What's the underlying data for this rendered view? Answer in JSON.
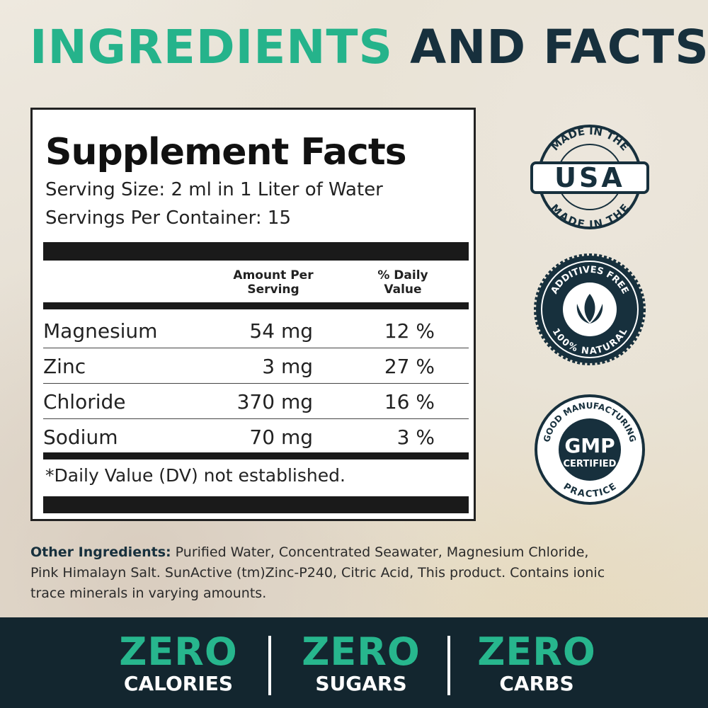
{
  "header": {
    "title_highlight": "INGREDIENTS",
    "title_rest": "AND FACTS"
  },
  "facts": {
    "title": "Supplement Facts",
    "serving_size": "Serving Size: 2 ml in 1 Liter of Water",
    "servings_per_container": "Servings Per Container: 15",
    "columns": [
      "Amount Per Serving",
      "% Daily Value"
    ],
    "rows": [
      [
        "Magnesium",
        "54 mg",
        "12 %"
      ],
      [
        "Zinc",
        "3 mg",
        "27 %"
      ],
      [
        "Chloride",
        "370 mg",
        "16 %"
      ],
      [
        "Sodium",
        "70 mg",
        "3 %"
      ]
    ],
    "footnote": "*Daily Value (DV) not established."
  },
  "badges": {
    "usa": {
      "top": "MADE IN THE",
      "center": "USA",
      "bottom": "MADE IN THE"
    },
    "additives": {
      "top": "ADDITIVES FREE",
      "bottom": "100% NATURAL"
    },
    "gmp": {
      "top": "GOOD MANUFACTURING",
      "center": "GMP",
      "sub": "CERTIFIED",
      "bottom": "PRACTICE"
    }
  },
  "other_ingredients": {
    "label": "Other Ingredients:",
    "text": "Purified Water, Concentrated Seawater, Magnesium Chloride, Pink Himalayn Salt. SunActive (tm)Zinc-P240, Citric Acid, This product. Contains ionic trace minerals in varying amounts."
  },
  "footer": {
    "items": [
      {
        "big": "ZERO",
        "small": "CALORIES"
      },
      {
        "big": "ZERO",
        "small": "SUGARS"
      },
      {
        "big": "ZERO",
        "small": "CARBS"
      }
    ]
  }
}
